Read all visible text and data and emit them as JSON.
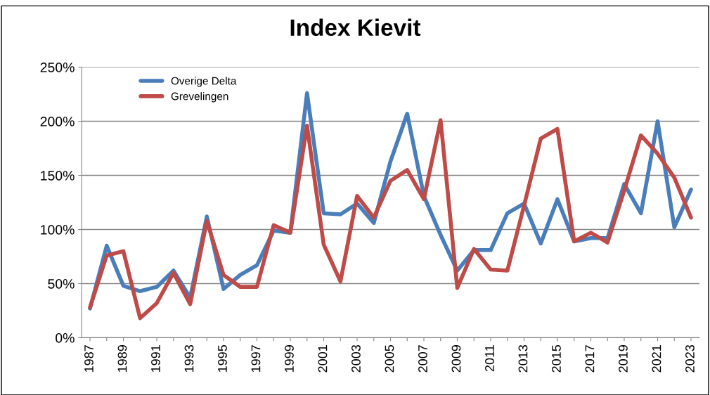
{
  "chart_data": {
    "type": "line",
    "title": "Index Kievit",
    "categories": [
      "1987",
      null,
      "1989",
      null,
      "1991",
      null,
      "1993",
      null,
      "1995",
      null,
      "1997",
      null,
      "1999",
      null,
      "2001",
      null,
      "2003",
      null,
      "2005",
      null,
      "2007",
      null,
      "2009",
      null,
      "2011",
      null,
      "2013",
      null,
      "2015",
      null,
      "2017",
      null,
      "2019",
      null,
      "2021",
      null,
      "2023"
    ],
    "series": [
      {
        "name": "Overige Delta",
        "color": "#4a7ebb",
        "values": [
          27,
          85,
          48,
          43,
          47,
          62,
          37,
          112,
          45,
          58,
          67,
          99,
          97,
          226,
          115,
          114,
          124,
          106,
          163,
          207,
          131,
          95,
          62,
          81,
          81,
          115,
          124,
          87,
          128,
          89,
          92,
          92,
          142,
          115,
          200,
          102,
          137
        ]
      },
      {
        "name": "Grevelingen",
        "color": "#be4b48",
        "values": [
          28,
          76,
          80,
          18,
          32,
          60,
          31,
          108,
          58,
          47,
          47,
          104,
          97,
          196,
          86,
          52,
          131,
          111,
          145,
          155,
          128,
          201,
          46,
          82,
          63,
          62,
          122,
          184,
          193,
          89,
          97,
          88,
          136,
          187,
          170,
          148,
          111
        ]
      }
    ],
    "ylim": [
      0,
      250
    ],
    "yticks": [
      {
        "value": 0,
        "label": "0%"
      },
      {
        "value": 50,
        "label": "50%"
      },
      {
        "value": 100,
        "label": "100%"
      },
      {
        "value": 150,
        "label": "150%"
      },
      {
        "value": 200,
        "label": "200%"
      },
      {
        "value": 250,
        "label": "250%"
      }
    ],
    "grid": "y",
    "legend": "top left",
    "marker": "none",
    "line_style": "solid"
  }
}
